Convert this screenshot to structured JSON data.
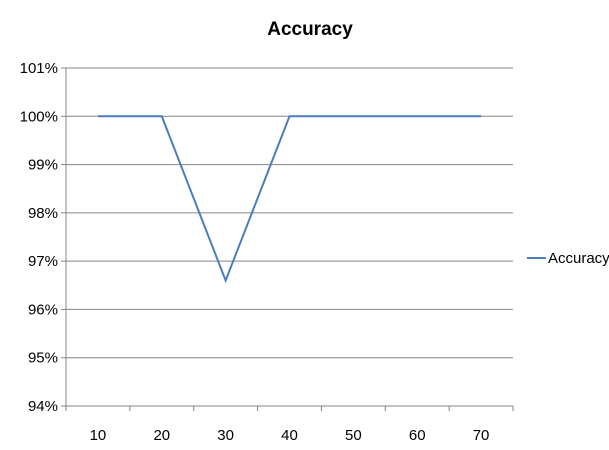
{
  "chart_data": {
    "type": "line",
    "title": "Accuracy",
    "xlabel": "",
    "ylabel": "",
    "categories": [
      "10",
      "20",
      "30",
      "40",
      "50",
      "60",
      "70"
    ],
    "series": [
      {
        "name": "Accuracy",
        "values": [
          1.0,
          1.0,
          0.966,
          1.0,
          1.0,
          1.0,
          1.0
        ],
        "color": "#4a7ebb"
      }
    ],
    "ylim": [
      0.94,
      1.01
    ],
    "yticks": [
      0.94,
      0.95,
      0.96,
      0.97,
      0.98,
      0.99,
      1.0,
      1.01
    ],
    "ytick_labels": [
      "94%",
      "95%",
      "96%",
      "97%",
      "98%",
      "99%",
      "100%",
      "101%"
    ],
    "grid": true,
    "legend_position": "right"
  }
}
